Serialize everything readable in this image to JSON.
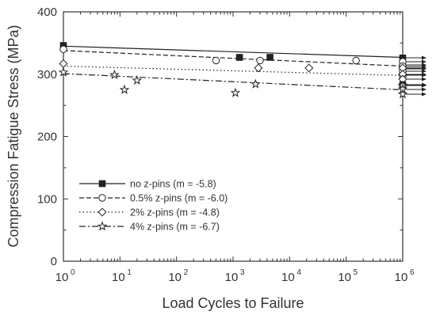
{
  "chart_data": {
    "type": "scatter",
    "xlabel": "Load Cycles to Failure",
    "ylabel": "Compression Fatigue Stress (MPa)",
    "xscale": "log",
    "xlim": [
      1,
      1000000
    ],
    "ylim": [
      0,
      400
    ],
    "y_ticks": [
      0,
      100,
      200,
      300,
      400
    ],
    "x_ticks": [
      {
        "value": 1,
        "base": "10",
        "exp": "0"
      },
      {
        "value": 10,
        "base": "10",
        "exp": "1"
      },
      {
        "value": 100,
        "base": "10",
        "exp": "2"
      },
      {
        "value": 1000,
        "base": "10",
        "exp": "3"
      },
      {
        "value": 10000,
        "base": "10",
        "exp": "4"
      },
      {
        "value": 100000,
        "base": "10",
        "exp": "5"
      },
      {
        "value": 1000000,
        "base": "10",
        "exp": "6"
      }
    ],
    "grid": false,
    "legend_position": "lower-left",
    "runout_arrows_at_x": 1000000,
    "series": [
      {
        "name": "no z-pins (m = -5.8)",
        "marker": "filled-square",
        "line_style": "solid",
        "color": "#222222",
        "fit": {
          "x": [
            1,
            1000000
          ],
          "y": [
            345,
            327
          ]
        },
        "points": [
          {
            "x": 1,
            "y": 346
          },
          {
            "x": 1300,
            "y": 327
          },
          {
            "x": 4500,
            "y": 327
          },
          {
            "x": 1000000,
            "y": 326
          },
          {
            "x": 1000000,
            "y": 315
          },
          {
            "x": 1000000,
            "y": 308
          },
          {
            "x": 1000000,
            "y": 298
          },
          {
            "x": 1000000,
            "y": 283
          }
        ]
      },
      {
        "name": "0.5% z-pins (m = -6.0)",
        "marker": "open-circle",
        "line_style": "dashed",
        "color": "#222222",
        "fit": {
          "x": [
            1,
            1000000
          ],
          "y": [
            338,
            313
          ]
        },
        "points": [
          {
            "x": 1,
            "y": 340
          },
          {
            "x": 500,
            "y": 322
          },
          {
            "x": 3000,
            "y": 322
          },
          {
            "x": 150000,
            "y": 322
          },
          {
            "x": 1000000,
            "y": 320
          },
          {
            "x": 1000000,
            "y": 313
          },
          {
            "x": 1000000,
            "y": 305
          },
          {
            "x": 1000000,
            "y": 298
          }
        ]
      },
      {
        "name": "2% z-pins (m = -4.8)",
        "marker": "open-diamond",
        "line_style": "dotted",
        "color": "#222222",
        "fit": {
          "x": [
            1,
            1000000
          ],
          "y": [
            313,
            298
          ]
        },
        "points": [
          {
            "x": 1,
            "y": 317
          },
          {
            "x": 2800,
            "y": 310
          },
          {
            "x": 22000,
            "y": 310
          },
          {
            "x": 1000000,
            "y": 310
          },
          {
            "x": 1000000,
            "y": 300
          },
          {
            "x": 1000000,
            "y": 292
          },
          {
            "x": 1000000,
            "y": 282
          }
        ]
      },
      {
        "name": "4% z-pins (m = -6.7)",
        "marker": "open-star",
        "line_style": "dash-dot",
        "color": "#222222",
        "fit": {
          "x": [
            1,
            1000000
          ],
          "y": [
            301,
            275
          ]
        },
        "points": [
          {
            "x": 1,
            "y": 303
          },
          {
            "x": 8,
            "y": 299
          },
          {
            "x": 12,
            "y": 275
          },
          {
            "x": 20,
            "y": 290
          },
          {
            "x": 1100,
            "y": 270
          },
          {
            "x": 2500,
            "y": 284
          },
          {
            "x": 1000000,
            "y": 282
          },
          {
            "x": 1000000,
            "y": 276
          },
          {
            "x": 1000000,
            "y": 268
          }
        ]
      }
    ]
  }
}
